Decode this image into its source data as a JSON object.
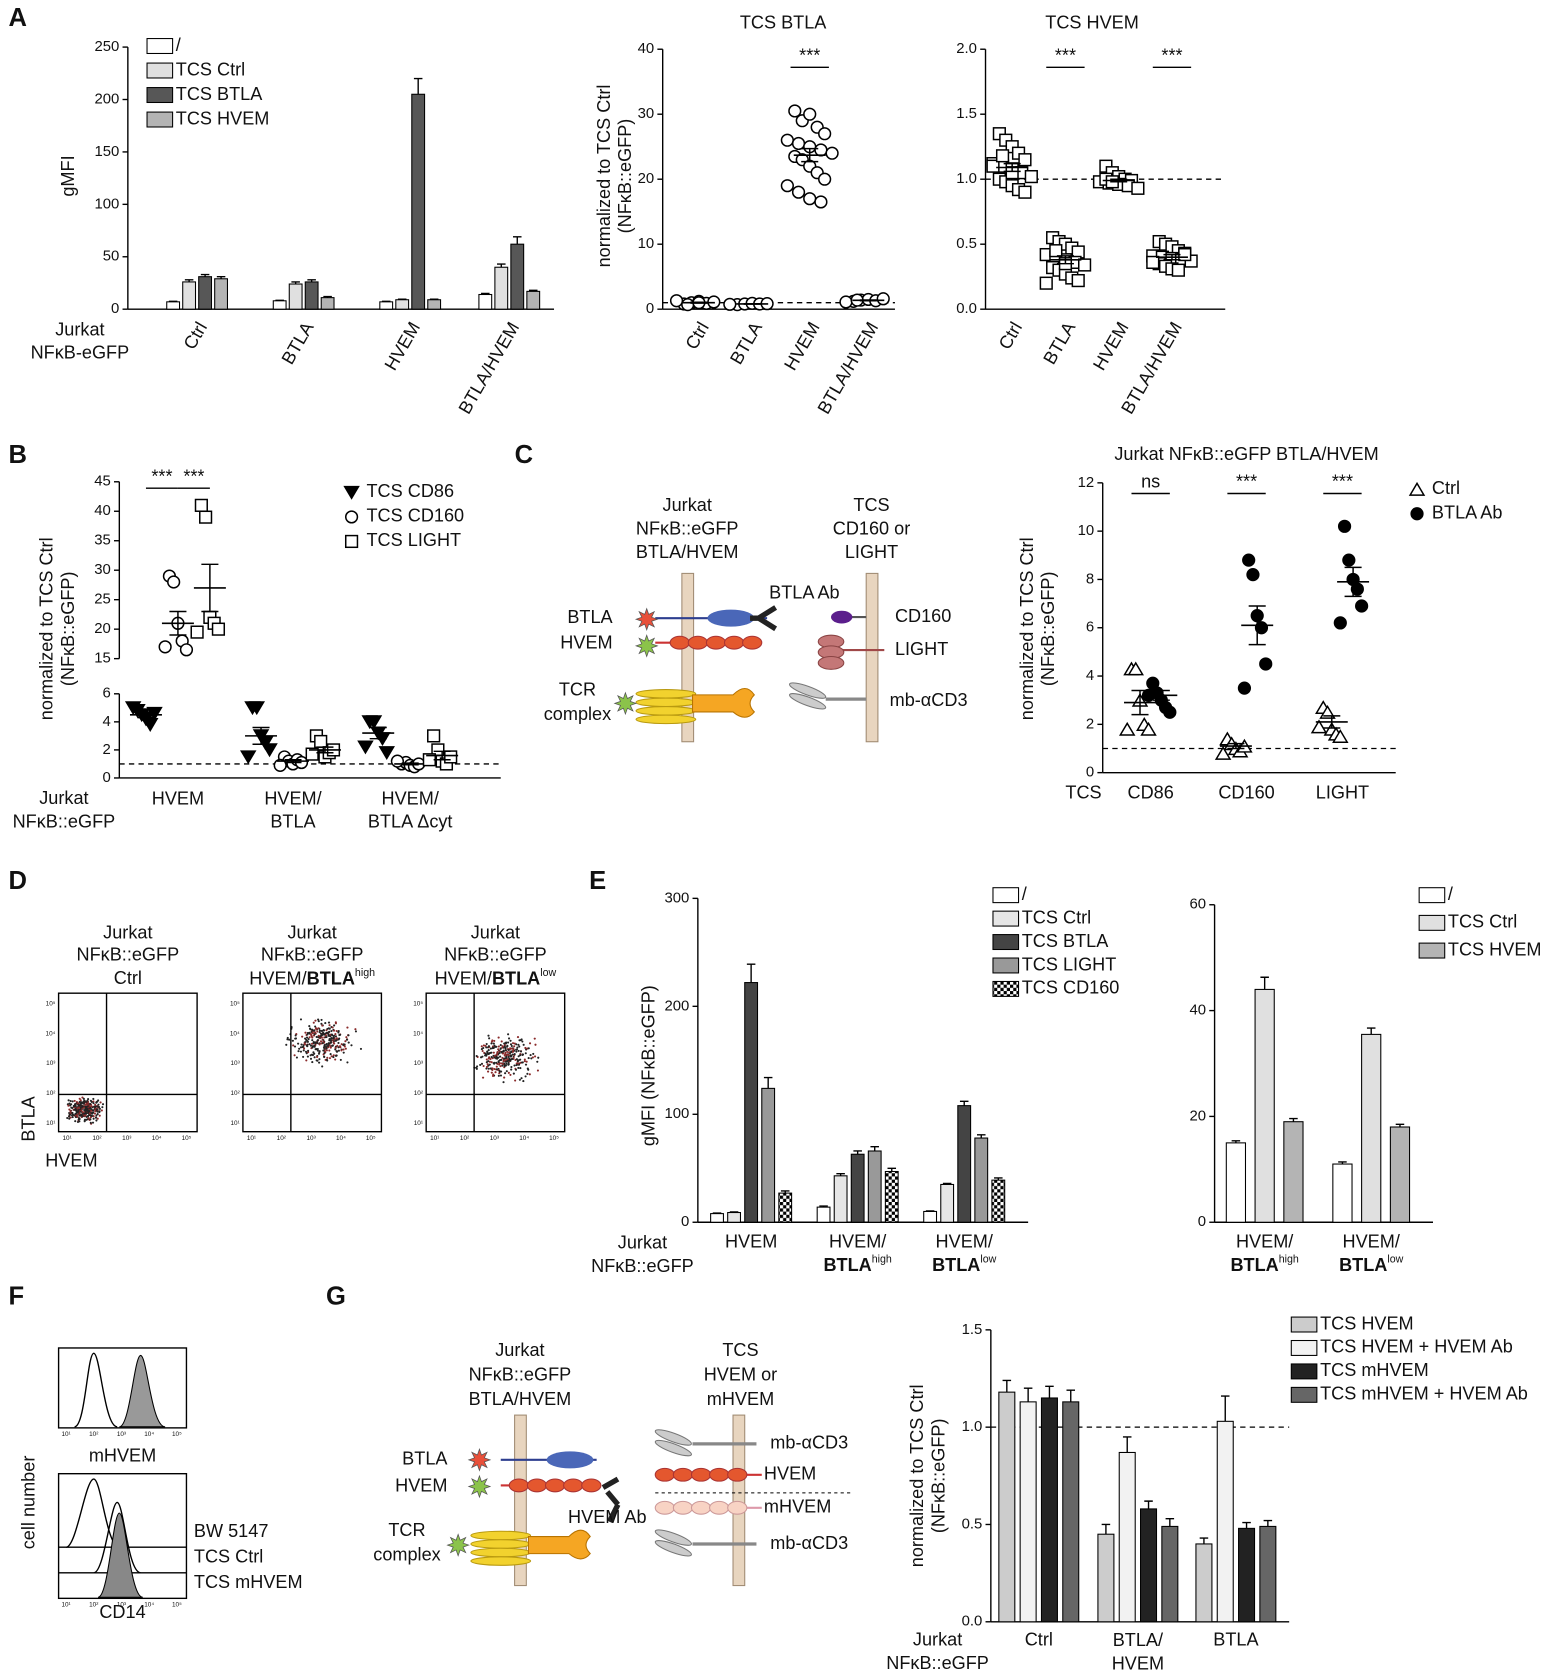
{
  "panel_letters": [
    "A",
    "B",
    "C",
    "D",
    "E",
    "F",
    "G"
  ],
  "chart_data": [
    {
      "type": "bar",
      "y_label": "gMFI",
      "x_label": [
        "Jurkat",
        "NFκB-eGFP"
      ],
      "categories": [
        "Ctrl",
        "BTLA",
        "HVEM",
        "BTLA/HVEM"
      ],
      "series": [
        {
          "name": "/",
          "color": "#ffffff",
          "values": [
            7,
            8,
            7,
            14
          ],
          "errors": [
            0.5,
            0.5,
            0.5,
            1
          ]
        },
        {
          "name": "TCS Ctrl",
          "color": "#e0e0e0",
          "values": [
            26,
            24,
            9,
            40
          ],
          "errors": [
            2,
            2,
            0.5,
            3
          ]
        },
        {
          "name": "TCS BTLA",
          "color": "#575757",
          "values": [
            31,
            26,
            205,
            62
          ],
          "errors": [
            2,
            2,
            15,
            7
          ]
        },
        {
          "name": "TCS HVEM",
          "color": "#b4b4b4",
          "values": [
            29,
            11,
            9,
            17
          ],
          "errors": [
            2,
            1,
            0.5,
            1
          ]
        }
      ],
      "ylim": [
        0,
        250
      ],
      "yticks": [
        0,
        50,
        100,
        150,
        200,
        250
      ]
    },
    {
      "type": "scatter",
      "title": "TCS BTLA",
      "y_label": [
        "normalized to TCS Ctrl",
        "(NFκB::eGFP)"
      ],
      "categories": [
        "Ctrl",
        "BTLA",
        "HVEM",
        "BTLA/HVEM"
      ],
      "series": [
        {
          "marker": "circle",
          "filled": false,
          "color": "#000000",
          "points": [
            [
              0.8,
              1.0,
              1.2,
              0.9,
              1.1,
              1.3,
              0.7,
              1.0
            ],
            [
              0.7,
              0.8,
              0.9,
              0.8,
              0.85,
              0.75
            ],
            [
              30.5,
              29,
              30,
              28,
              27,
              26,
              25.5,
              25,
              24.5,
              24,
              23.5,
              23,
              22,
              21,
              20,
              19,
              18,
              17,
              16.5
            ],
            [
              1.2,
              1.4,
              1.5,
              1.3,
              1.6,
              1.1,
              1.4
            ]
          ],
          "means": [
            1.0,
            0.8,
            23.7,
            1.36
          ],
          "sems": [
            0.07,
            0.03,
            1.0,
            0.06
          ]
        }
      ],
      "reference_line": 1,
      "annotations": [
        {
          "text": "***",
          "category": "HVEM"
        }
      ],
      "ylim": [
        0,
        40
      ],
      "yticks": [
        0,
        10,
        20,
        30,
        40
      ]
    },
    {
      "type": "scatter",
      "title": "TCS HVEM",
      "categories": [
        "Ctrl",
        "BTLA",
        "HVEM",
        "BTLA/HVEM"
      ],
      "series": [
        {
          "marker": "square",
          "filled": false,
          "color": "#000000",
          "points": [
            [
              1.35,
              1.3,
              1.25,
              1.2,
              1.15,
              1.12,
              1.1,
              1.08,
              1.05,
              1.02,
              1.0,
              0.98,
              0.95,
              0.92,
              0.9,
              1.1,
              1.18,
              1.05
            ],
            [
              0.55,
              0.52,
              0.5,
              0.47,
              0.44,
              0.42,
              0.4,
              0.38,
              0.36,
              0.34,
              0.32,
              0.3,
              0.27,
              0.24,
              0.22,
              0.2,
              0.45,
              0.35
            ],
            [
              1.1,
              1.05,
              1.02,
              1.0,
              0.99,
              0.98,
              0.97,
              0.96,
              0.95,
              0.93,
              1.0,
              0.98
            ],
            [
              0.52,
              0.5,
              0.48,
              0.45,
              0.43,
              0.41,
              0.4,
              0.39,
              0.38,
              0.37,
              0.35,
              0.33,
              0.31,
              0.3,
              0.42,
              0.36
            ]
          ],
          "means": [
            1.09,
            0.38,
            0.99,
            0.4
          ],
          "sems": [
            0.03,
            0.03,
            0.01,
            0.02
          ]
        }
      ],
      "reference_line": 1,
      "annotations": [
        {
          "text": "***",
          "category": "BTLA"
        },
        {
          "text": "***",
          "category": "BTLA/HVEM"
        }
      ],
      "ylim": [
        0,
        2
      ],
      "yticks": [
        {
          "value": 0,
          "label": "0.0"
        },
        0.5,
        {
          "value": 1,
          "label": "1.0"
        },
        1.5,
        {
          "value": 2,
          "label": "2.0"
        }
      ]
    },
    {
      "type": "scatter",
      "y_label": [
        "normalized to TCS Ctrl",
        "(NFκB::eGFP)"
      ],
      "x_label": [
        "Jurkat",
        "NFκB::eGFP"
      ],
      "categories": [
        [
          "HVEM"
        ],
        [
          "HVEM/",
          "BTLA"
        ],
        [
          "HVEM/",
          "BTLA Δcyt"
        ]
      ],
      "series": [
        {
          "name": "TCS CD86",
          "marker": "triangle-down",
          "filled": true,
          "color": "#000000",
          "points": [
            [
              4.8,
              4.5,
              4.2,
              3.8,
              4.6,
              5.0
            ],
            [
              5.0,
              5.0,
              3.0,
              2.5,
              2.0,
              1.5
            ],
            [
              4.0,
              4.0,
              3.2,
              2.8,
              1.8,
              2.2
            ]
          ],
          "means": [
            4.5,
            3.0,
            3.2
          ],
          "sems": [
            0.2,
            0.6,
            0.4
          ]
        },
        {
          "name": "TCS CD160",
          "marker": "circle",
          "filled": false,
          "color": "#000000",
          "points": [
            [
              29,
              28,
              21,
              18,
              16.5,
              17
            ],
            [
              1.5,
              1.2,
              1.0,
              1.3,
              1.1,
              0.9
            ],
            [
              1.0,
              1.1,
              0.9,
              0.8,
              1.0,
              1.2
            ]
          ],
          "means": [
            21,
            1.2,
            1.0
          ],
          "sems": [
            2,
            0.1,
            0.06
          ]
        },
        {
          "name": "TCS LIGHT",
          "marker": "square",
          "filled": false,
          "color": "#000000",
          "points": [
            [
              41,
              39,
              22,
              21,
              20,
              19.5
            ],
            [
              3.0,
              2.6,
              1.5,
              1.8,
              2.0,
              1.7
            ],
            [
              3.0,
              2.0,
              1.2,
              1.0,
              1.5,
              1.3
            ]
          ],
          "means": [
            27,
            2.0,
            1.6
          ],
          "sems": [
            4,
            0.2,
            0.3
          ]
        }
      ],
      "reference_line": 1,
      "annotations": [
        {
          "text": "***",
          "category": "HVEM",
          "series": [
            "TCS CD86",
            "TCS CD160"
          ]
        },
        {
          "text": "***",
          "category": "HVEM",
          "series": [
            "TCS CD160",
            "TCS LIGHT"
          ]
        }
      ],
      "ylim": [
        0,
        6
      ],
      "yticks": [
        0,
        2,
        4,
        6
      ],
      "ylim_break": [
        15,
        45
      ],
      "yticks_break": [
        15,
        20,
        25,
        30,
        35,
        40,
        45
      ]
    },
    {
      "type": "scatter",
      "title": "Jurkat NFκB::eGFP BTLA/HVEM",
      "y_label": [
        "normalized to TCS Ctrl",
        "(NFκB::eGFP)"
      ],
      "x_label": [
        "TCS"
      ],
      "categories": [
        "CD86",
        "CD160",
        "LIGHT"
      ],
      "series": [
        {
          "name": "Ctrl",
          "marker": "triangle-up",
          "filled": false,
          "color": "#000000",
          "points": [
            [
              4.3,
              4.3,
              3.0,
              2.0,
              1.8,
              1.8
            ],
            [
              1.4,
              1.2,
              1.0,
              0.9,
              1.1,
              0.8
            ],
            [
              2.7,
              2.5,
              1.8,
              1.6,
              1.5,
              1.9
            ]
          ],
          "means": [
            2.9,
            1.1,
            2.1
          ],
          "sems": [
            0.5,
            0.1,
            0.25
          ]
        },
        {
          "name": "BTLA Ab",
          "marker": "circle",
          "filled": true,
          "color": "#000000",
          "points": [
            [
              3.7,
              3.3,
              3.0,
              2.7,
              2.5,
              3.2
            ],
            [
              8.8,
              8.2,
              6.5,
              6.0,
              4.5,
              3.5
            ],
            [
              10.2,
              8.8,
              8.0,
              7.6,
              6.9,
              6.2
            ]
          ],
          "means": [
            3.2,
            6.1,
            7.9
          ],
          "sems": [
            0.2,
            0.8,
            0.6
          ]
        }
      ],
      "reference_line": 1,
      "annotations": [
        {
          "text": "ns",
          "category": "CD86"
        },
        {
          "text": "***",
          "category": "CD160"
        },
        {
          "text": "***",
          "category": "LIGHT"
        }
      ],
      "ylim": [
        0,
        12
      ],
      "yticks": [
        0,
        2,
        4,
        6,
        8,
        10,
        12
      ]
    },
    {
      "type": "bar",
      "y_label": "gMFI (NFκB::eGFP)",
      "x_label": [
        "Jurkat",
        "NFκB::eGFP"
      ],
      "categories": [
        "HVEM",
        {
          "lines": [
            "HVEM/",
            "BTLA"
          ],
          "sup": "high"
        },
        {
          "lines": [
            "HVEM/",
            "BTLA"
          ],
          "sup": "low"
        }
      ],
      "series": [
        {
          "name": "/",
          "color": "#ffffff",
          "values": [
            8,
            14,
            10
          ],
          "errors": [
            0.5,
            1,
            0.5
          ]
        },
        {
          "name": "TCS Ctrl",
          "color": "#e6e6e6",
          "values": [
            9,
            43,
            35
          ],
          "errors": [
            0.5,
            2,
            1
          ]
        },
        {
          "name": "TCS BTLA",
          "color": "#444444",
          "values": [
            222,
            63,
            108
          ],
          "errors": [
            17,
            3,
            4
          ]
        },
        {
          "name": "TCS LIGHT",
          "color": "#999999",
          "values": [
            124,
            66,
            78
          ],
          "errors": [
            10,
            4,
            3
          ]
        },
        {
          "name": "TCS CD160",
          "color": "#000000",
          "pattern": "checker",
          "values": [
            27,
            47,
            39
          ],
          "errors": [
            2,
            3,
            2
          ]
        }
      ],
      "ylim": [
        0,
        300
      ],
      "yticks": [
        0,
        100,
        200,
        300
      ]
    },
    {
      "type": "bar",
      "categories": [
        {
          "lines": [
            "HVEM/",
            "BTLA"
          ],
          "sup": "high"
        },
        {
          "lines": [
            "HVEM/",
            "BTLA"
          ],
          "sup": "low"
        }
      ],
      "series": [
        {
          "name": "/",
          "color": "#ffffff",
          "values": [
            15,
            11
          ],
          "errors": [
            0.4,
            0.4
          ]
        },
        {
          "name": "TCS Ctrl",
          "color": "#e0e0e0",
          "values": [
            44,
            35.5
          ],
          "errors": [
            2.3,
            1.2
          ]
        },
        {
          "name": "TCS HVEM",
          "color": "#b4b4b4",
          "values": [
            19,
            18
          ],
          "errors": [
            0.6,
            0.5
          ]
        }
      ],
      "ylim": [
        0,
        60
      ],
      "yticks": [
        0,
        20,
        40,
        60
      ]
    },
    {
      "type": "bar",
      "y_label": [
        "normalized to TCS Ctrl",
        "(NFκB::eGFP)"
      ],
      "x_label": [
        "Jurkat",
        "NFκB::eGFP"
      ],
      "categories": [
        "Ctrl",
        [
          "BTLA/",
          "HVEM"
        ],
        "BTLA"
      ],
      "series": [
        {
          "name": "TCS HVEM",
          "color": "#cccccc",
          "values": [
            1.18,
            0.45,
            0.4
          ],
          "errors": [
            0.06,
            0.05,
            0.03
          ]
        },
        {
          "name": "TCS HVEM + HVEM Ab",
          "color": "#f2f2f2",
          "values": [
            1.13,
            0.87,
            1.03
          ],
          "errors": [
            0.07,
            0.08,
            0.13
          ]
        },
        {
          "name": "TCS mHVEM",
          "color": "#222222",
          "values": [
            1.15,
            0.58,
            0.48
          ],
          "errors": [
            0.06,
            0.04,
            0.03
          ]
        },
        {
          "name": "TCS mHVEM + HVEM Ab",
          "color": "#666666",
          "values": [
            1.13,
            0.49,
            0.49
          ],
          "errors": [
            0.06,
            0.04,
            0.03
          ]
        }
      ],
      "reference_line": 1,
      "ylim": [
        0,
        1.5
      ],
      "yticks": [
        {
          "value": 0,
          "label": "0.0"
        },
        0.5,
        {
          "value": 1,
          "label": "1.0"
        },
        1.5
      ]
    }
  ],
  "diagram_c": {
    "jurkat": [
      "Jurkat",
      "NFκB::eGFP",
      "BTLA/HVEM"
    ],
    "tcs": [
      "TCS",
      "CD160 or",
      "LIGHT"
    ],
    "btla": "BTLA",
    "hvem": "HVEM",
    "tcr": [
      "TCR",
      "complex"
    ],
    "btla_ab": "BTLA Ab",
    "cd160": "CD160",
    "light": "LIGHT",
    "mb_acd3": "mb-αCD3"
  },
  "diagram_g": {
    "jurkat": [
      "Jurkat",
      "NFκB::eGFP",
      "BTLA/HVEM"
    ],
    "tcs": [
      "TCS",
      "HVEM or",
      "mHVEM"
    ],
    "btla": "BTLA",
    "hvem": "HVEM",
    "tcr": [
      "TCR",
      "complex"
    ],
    "hvem_ab": "HVEM Ab",
    "mb_acd3_top": "mb-αCD3",
    "hvem_right": "HVEM",
    "mhvem": "mHVEM",
    "mb_acd3_bottom": "mb-αCD3"
  },
  "flow_d": {
    "titles": [
      {
        "lines": [
          "Jurkat",
          "NFκB::eGFP",
          "Ctrl"
        ]
      },
      {
        "lines": [
          "Jurkat",
          "NFκB::eGFP"
        ],
        "prefix": "HVEM/",
        "bold": "BTLA",
        "sup": "high"
      },
      {
        "lines": [
          "Jurkat",
          "NFκB::eGFP"
        ],
        "prefix": "HVEM/",
        "bold": "BTLA",
        "sup": "low"
      }
    ],
    "y_label": "BTLA",
    "x_label": "HVEM",
    "decades": [
      "10¹",
      "10²",
      "10³",
      "10⁴",
      "10⁵"
    ]
  },
  "hist_f": {
    "top_x_label": "mHVEM",
    "bottom_x_label": "CD14",
    "y_label": "cell number",
    "traces": [
      "BW 5147",
      "TCS Ctrl",
      "TCS mHVEM"
    ],
    "decades": [
      "10¹",
      "10²",
      "10³",
      "10⁴",
      "10⁵"
    ]
  }
}
